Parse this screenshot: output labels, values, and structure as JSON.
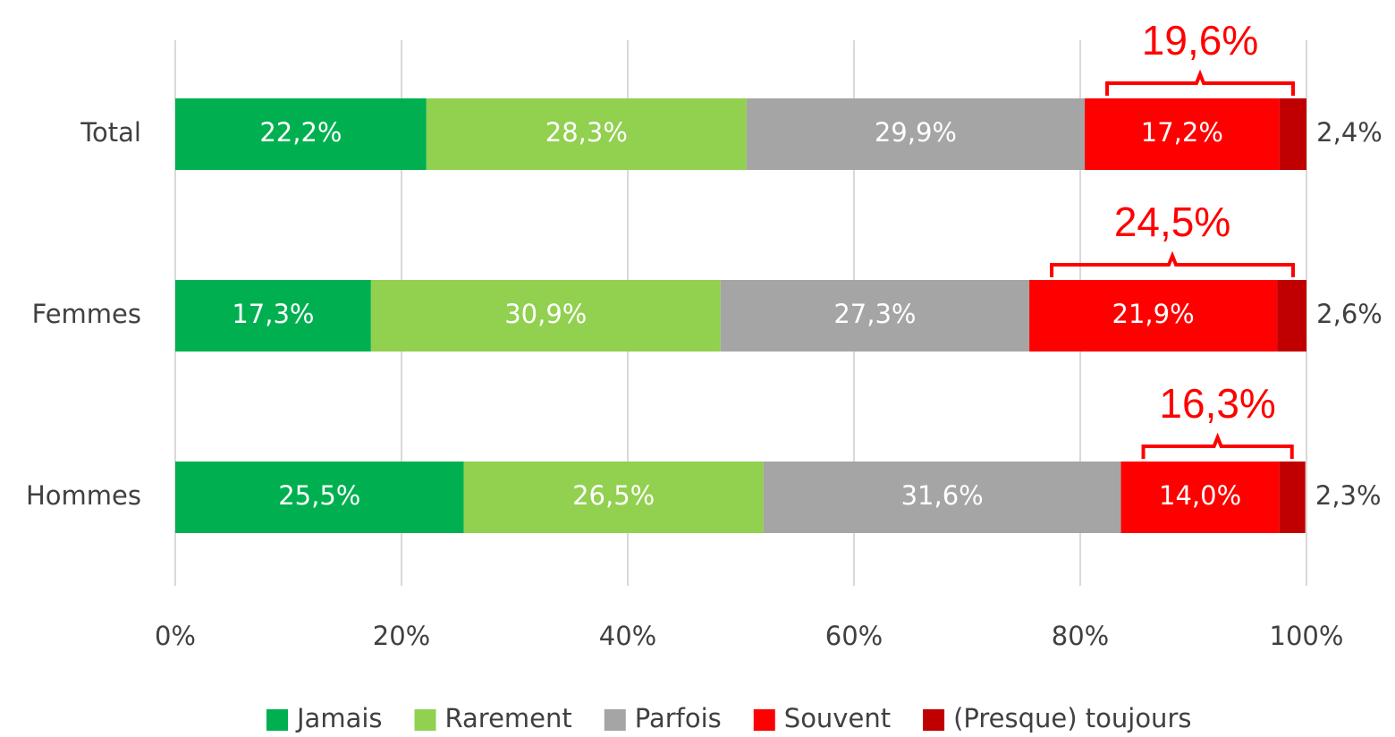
{
  "chart_data": {
    "type": "stacked-bar-horizontal",
    "categories": [
      "Total",
      "Femmes",
      "Hommes"
    ],
    "series": [
      {
        "name": "Jamais",
        "color": "#00b050",
        "values": [
          22.2,
          17.3,
          25.5
        ],
        "value_labels": [
          "22,2%",
          "17,3%",
          "25,5%"
        ]
      },
      {
        "name": "Rarement",
        "color": "#92d050",
        "values": [
          28.3,
          30.9,
          26.5
        ],
        "value_labels": [
          "28,3%",
          "30,9%",
          "26,5%"
        ]
      },
      {
        "name": "Parfois",
        "color": "#a5a5a5",
        "values": [
          29.9,
          27.3,
          31.6
        ],
        "value_labels": [
          "29,9%",
          "27,3%",
          "31,6%"
        ]
      },
      {
        "name": "Souvent",
        "color": "#ff0000",
        "values": [
          17.2,
          21.9,
          14.0
        ],
        "value_labels": [
          "17,2%",
          "21,9%",
          "14,0%"
        ]
      },
      {
        "name": "(Presque) toujours",
        "color": "#c00000",
        "values": [
          2.4,
          2.6,
          2.3
        ],
        "value_labels": [
          "2,4%",
          "2,6%",
          "2,3%"
        ]
      }
    ],
    "annotations": [
      {
        "value": 19.6,
        "label": "19,6%"
      },
      {
        "value": 24.5,
        "label": "24,5%"
      },
      {
        "value": 16.3,
        "label": "16,3%"
      }
    ],
    "annotation_color": "#ff0000",
    "xlim": [
      0,
      100
    ],
    "xticks": [
      {
        "value": 0,
        "label": "0%"
      },
      {
        "value": 20,
        "label": "20%"
      },
      {
        "value": 40,
        "label": "40%"
      },
      {
        "value": 60,
        "label": "60%"
      },
      {
        "value": 80,
        "label": "80%"
      },
      {
        "value": 100,
        "label": "100%"
      }
    ],
    "grid": true,
    "legend": "bottom"
  }
}
